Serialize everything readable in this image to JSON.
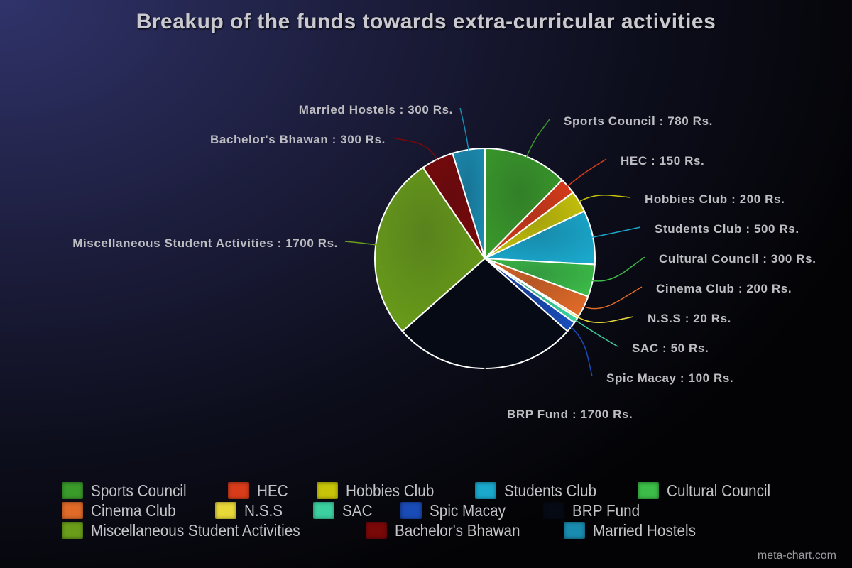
{
  "chart_data": {
    "type": "pie",
    "title": "Breakup of the funds towards extra-curricular activities",
    "unit_suffix": "Rs.",
    "legend_position": "bottom",
    "start_angle": "top, clockwise",
    "slices": [
      {
        "label": "Sports Council",
        "value": 780,
        "color": "#3a9a2a",
        "data_label": "Sports Council : 780 Rs."
      },
      {
        "label": "HEC",
        "value": 150,
        "color": "#d83c1a",
        "data_label": "HEC : 150 Rs."
      },
      {
        "label": "Hobbies Club",
        "value": 200,
        "color": "#c8c40a",
        "data_label": "Hobbies Club : 200 Rs."
      },
      {
        "label": "Students Club",
        "value": 500,
        "color": "#1aa8cc",
        "data_label": "Students Club : 500 Rs."
      },
      {
        "label": "Cultural Council",
        "value": 300,
        "color": "#3cbc48",
        "data_label": "Cultural Council : 300 Rs."
      },
      {
        "label": "Cinema Club",
        "value": 200,
        "color": "#e06a28",
        "data_label": "Cinema Club : 200 Rs."
      },
      {
        "label": "N.S.S",
        "value": 20,
        "color": "#e8d83a",
        "data_label": "N.S.S : 20 Rs."
      },
      {
        "label": "SAC",
        "value": 50,
        "color": "#3cd0a0",
        "data_label": "SAC : 50 Rs."
      },
      {
        "label": "Spic Macay",
        "value": 100,
        "color": "#1a4cb8",
        "data_label": "Spic Macay : 100 Rs."
      },
      {
        "label": "BRP Fund",
        "value": 1700,
        "color": "#050a14",
        "data_label": "BRP Fund : 1700 Rs."
      },
      {
        "label": "Miscellaneous Student Activities",
        "value": 1700,
        "color": "#6a9e1a",
        "data_label": "Miscellaneous Student Activities : 1700 Rs."
      },
      {
        "label": "Bachelor's Bhawan",
        "value": 300,
        "color": "#7a0808",
        "data_label": "Bachelor's Bhawan : 300 Rs."
      },
      {
        "label": "Married Hostels",
        "value": 300,
        "color": "#1a8cb0",
        "data_label": "Married Hostels : 300 Rs."
      }
    ]
  },
  "credit": "meta-chart.com"
}
